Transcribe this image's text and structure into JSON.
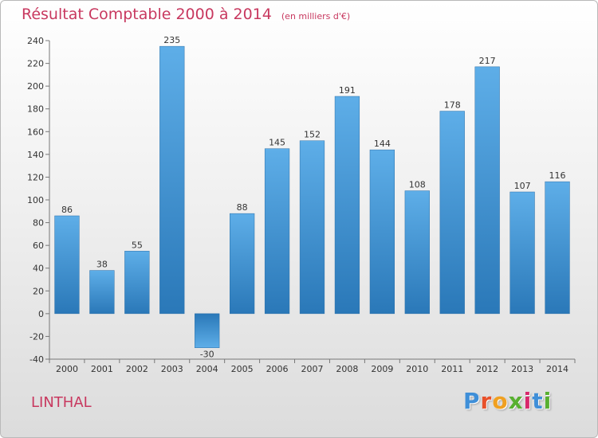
{
  "header": {
    "title": "Résultat Comptable 2000 à 2014",
    "subtitle": "(en milliers d'€)"
  },
  "footer": {
    "commune": "LINTHAL",
    "logo_letters": [
      "P",
      "r",
      "o",
      "x",
      "i",
      "t",
      "i"
    ],
    "logo_colors": [
      "#3f8fd8",
      "#e8502a",
      "#f0a020",
      "#58b030",
      "#d8286c",
      "#3f8fd8",
      "#58b030"
    ]
  },
  "chart_data": {
    "type": "bar",
    "title": "Résultat Comptable 2000 à 2014",
    "subtitle": "(en milliers d'€)",
    "categories": [
      "2000",
      "2001",
      "2002",
      "2003",
      "2004",
      "2005",
      "2006",
      "2007",
      "2008",
      "2009",
      "2010",
      "2011",
      "2012",
      "2013",
      "2014"
    ],
    "values": [
      86,
      38,
      55,
      235,
      -30,
      88,
      145,
      152,
      191,
      144,
      108,
      178,
      217,
      107,
      116
    ],
    "ylim": [
      -40,
      240
    ],
    "yticks": [
      -40,
      -20,
      0,
      20,
      40,
      60,
      80,
      100,
      120,
      140,
      160,
      180,
      200,
      220,
      240
    ],
    "grid": false,
    "bar_color": "#3a8fd4"
  }
}
